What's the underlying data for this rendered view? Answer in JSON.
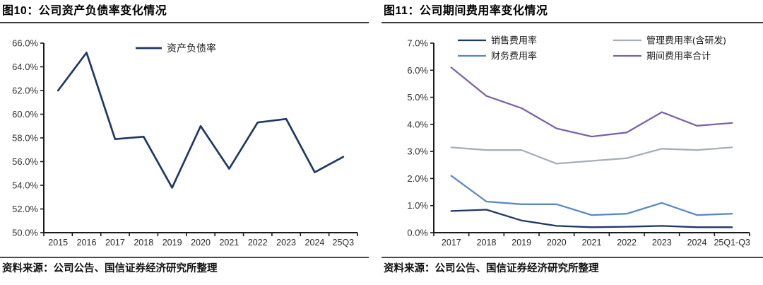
{
  "chart_data": [
    {
      "type": "line",
      "title": "图10：公司资产负债率变化情况",
      "source": "资料来源：公司公告、国信证券经济研究所整理",
      "categories": [
        "2015",
        "2016",
        "2017",
        "2018",
        "2019",
        "2020",
        "2021",
        "2022",
        "2023",
        "2024",
        "25Q3"
      ],
      "series": [
        {
          "name": "资产负债率",
          "color": "#1F3864",
          "values": [
            62.0,
            65.2,
            57.9,
            58.1,
            53.8,
            59.0,
            55.4,
            59.3,
            59.6,
            55.1,
            56.4
          ]
        }
      ],
      "ylim": [
        50,
        66
      ],
      "y_step": 2,
      "y_tick_format": "one-decimal-percent",
      "grid": false,
      "legend_position": "top-center",
      "axis_color": "#1a1a1a",
      "tick_label_color": "#333333"
    },
    {
      "type": "line",
      "title": "图11：公司期间费用率变化情况",
      "source": "资料来源：公司公告、国信证券经济研究所整理",
      "categories": [
        "2017",
        "2018",
        "2019",
        "2020",
        "2021",
        "2022",
        "2023",
        "2024",
        "25Q1-Q3"
      ],
      "series": [
        {
          "name": "销售费用率",
          "color": "#1F3864",
          "values": [
            0.8,
            0.85,
            0.45,
            0.25,
            0.2,
            0.22,
            0.25,
            0.2,
            0.2
          ]
        },
        {
          "name": "管理费用率(含研发)",
          "color": "#A6AEB8",
          "values": [
            3.15,
            3.05,
            3.05,
            2.55,
            2.65,
            2.75,
            3.1,
            3.05,
            3.15
          ]
        },
        {
          "name": "财务费用率",
          "color": "#5B87C8",
          "values": [
            2.1,
            1.15,
            1.05,
            1.05,
            0.65,
            0.7,
            1.1,
            0.65,
            0.7
          ]
        },
        {
          "name": "期间费用率合计",
          "color": "#7C63A8",
          "values": [
            6.1,
            5.05,
            4.6,
            3.85,
            3.55,
            3.7,
            4.45,
            3.95,
            4.05
          ]
        }
      ],
      "ylim": [
        0,
        7
      ],
      "y_step": 1,
      "y_tick_format": "one-decimal-percent",
      "grid": false,
      "legend_position": "top-two-columns",
      "axis_color": "#1a1a1a",
      "tick_label_color": "#333333"
    }
  ]
}
